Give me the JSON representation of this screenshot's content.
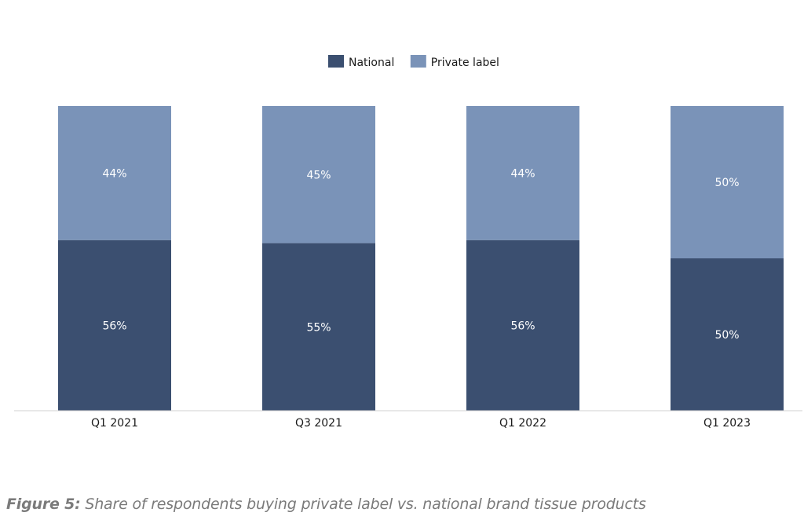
{
  "chart_data": {
    "type": "bar",
    "stacked": true,
    "categories": [
      "Q1 2021",
      "Q3 2021",
      "Q1 2022",
      "Q1 2023"
    ],
    "series": [
      {
        "name": "National",
        "values": [
          56,
          55,
          56,
          50
        ],
        "labels": [
          "56%",
          "55%",
          "56%",
          "50%"
        ],
        "color": "#3b4f70"
      },
      {
        "name": "Private label",
        "values": [
          44,
          45,
          44,
          50
        ],
        "labels": [
          "44%",
          "45%",
          "44%",
          "50%"
        ],
        "color": "#7a93b8"
      }
    ],
    "ylim": [
      0,
      100
    ],
    "legend_position": "top-center",
    "grid": false
  },
  "caption": {
    "label": "Figure 5:",
    "text": "Share of respondents buying private label vs. national brand tissue products"
  }
}
